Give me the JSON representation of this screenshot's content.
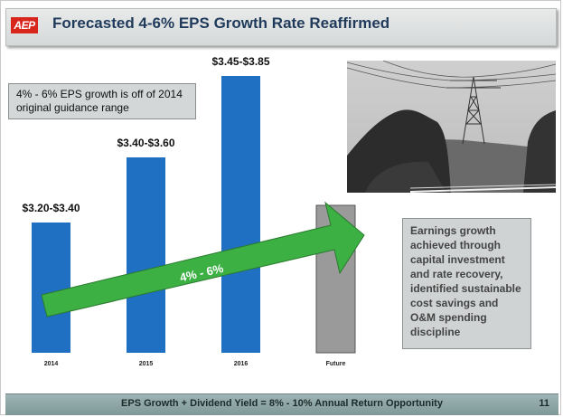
{
  "title": "Forecasted 4-6% EPS Growth Rate Reaffirmed",
  "logo_text": "AEP",
  "callout_text": "4% - 6% EPS growth is off of 2014 original guidance range",
  "side_box_text": "Earnings growth achieved through capital investment and rate recovery, identified sustainable cost savings and O&M spending discipline",
  "footer_text": "EPS Growth + Dividend Yield = 8% - 10% Annual Return Opportunity",
  "page_number": "11",
  "colors": {
    "bar": "#1f6fc2",
    "future_bar": "#9a9a9a",
    "arrow": "#3cb043",
    "brand_red": "#d9261c"
  },
  "chart_data": {
    "type": "bar",
    "categories": [
      "2014",
      "2015",
      "2016",
      "Future"
    ],
    "ranges": [
      [
        3.2,
        3.4
      ],
      [
        3.4,
        3.6
      ],
      [
        3.45,
        3.85
      ],
      null
    ],
    "labels": [
      "$3.20-$3.40",
      "$3.40-$3.60",
      "$3.45-$3.85",
      ""
    ],
    "arrow_label": "4% - 6%",
    "grid": false,
    "axis_visible": false
  }
}
